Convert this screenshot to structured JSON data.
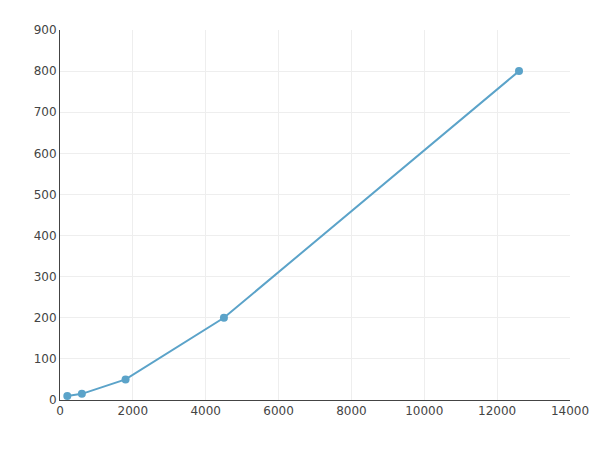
{
  "chart_data": {
    "type": "line",
    "x": [
      200,
      600,
      1800,
      4500,
      12600
    ],
    "values": [
      10,
      15,
      50,
      200,
      800
    ],
    "color": "#5ba3c9",
    "marker": "circle",
    "xlim": [
      0,
      14000
    ],
    "ylim": [
      0,
      900
    ],
    "xticks": [
      0,
      2000,
      4000,
      6000,
      8000,
      10000,
      12000,
      14000
    ],
    "yticks": [
      0,
      100,
      200,
      300,
      400,
      500,
      600,
      700,
      800,
      900
    ],
    "grid": true
  }
}
